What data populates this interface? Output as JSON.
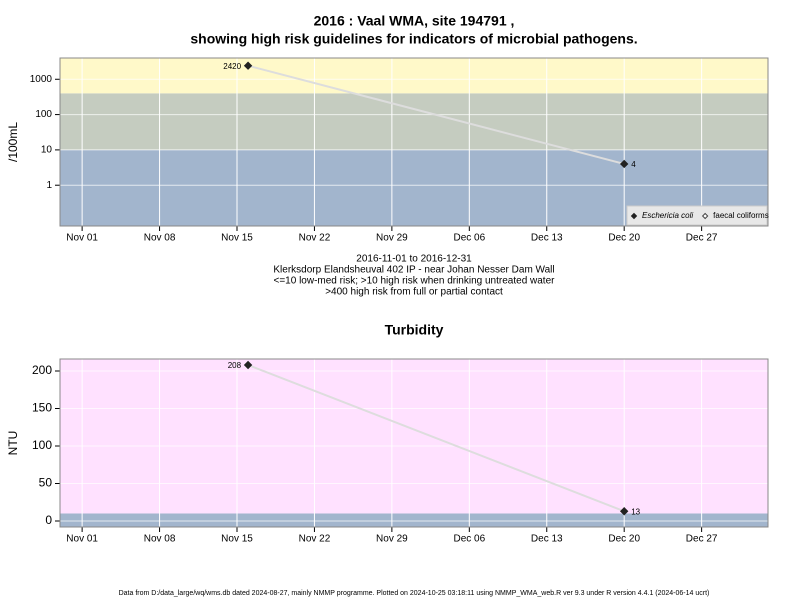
{
  "chart_data": [
    {
      "type": "line",
      "title": "2016 : Vaal WMA, site 194791 ,",
      "subtitle": "showing high risk guidelines for indicators of microbial pathogens.",
      "ylabel": "/100mL",
      "log_y": true,
      "grid": true,
      "legend": "lower right",
      "x": [
        "2016-11-16",
        "2016-12-20"
      ],
      "xlim": [
        "2016-10-30",
        "2017-01-02"
      ],
      "xticks": [
        {
          "value": "2016-11-01",
          "label": "Nov 01"
        },
        {
          "value": "2016-11-08",
          "label": "Nov 08"
        },
        {
          "value": "2016-11-15",
          "label": "Nov 15"
        },
        {
          "value": "2016-11-22",
          "label": "Nov 22"
        },
        {
          "value": "2016-11-29",
          "label": "Nov 29"
        },
        {
          "value": "2016-12-06",
          "label": "Dec 06"
        },
        {
          "value": "2016-12-13",
          "label": "Dec 13"
        },
        {
          "value": "2016-12-20",
          "label": "Dec 20"
        },
        {
          "value": "2016-12-27",
          "label": "Dec 27"
        }
      ],
      "ylim": [
        0.07,
        4000
      ],
      "yticks": [
        1,
        10,
        100,
        1000
      ],
      "band_breaks": [
        10,
        400
      ],
      "band_colors": [
        "#a2b5cd",
        "#c5ccc0",
        "#fff9c9"
      ],
      "line_color": "#dddddd",
      "series": [
        {
          "name": "Eschericia coli",
          "color": "#222222",
          "marker": "filled",
          "values": [
            2420,
            4
          ]
        },
        {
          "name": "faecal coliforms",
          "color": "#444444",
          "marker": "open",
          "values": [
            null,
            null
          ]
        }
      ],
      "annotations": [
        "2016-11-01 to 2016-12-31",
        "Klerksdorp Elandsheuval 402 IP - near Johan Nesser Dam Wall",
        "<=10 low-med risk; >10 high risk when drinking untreated water",
        ">400 high risk from full or partial contact"
      ]
    },
    {
      "type": "line",
      "title": "Turbidity",
      "ylabel": "NTU",
      "log_y": false,
      "grid": true,
      "x": [
        "2016-11-16",
        "2016-12-20"
      ],
      "xlim": [
        "2016-10-30",
        "2017-01-02"
      ],
      "xticks": [
        {
          "value": "2016-11-01",
          "label": "Nov 01"
        },
        {
          "value": "2016-11-08",
          "label": "Nov 08"
        },
        {
          "value": "2016-11-15",
          "label": "Nov 15"
        },
        {
          "value": "2016-11-22",
          "label": "Nov 22"
        },
        {
          "value": "2016-11-29",
          "label": "Nov 29"
        },
        {
          "value": "2016-12-06",
          "label": "Dec 06"
        },
        {
          "value": "2016-12-13",
          "label": "Dec 13"
        },
        {
          "value": "2016-12-20",
          "label": "Dec 20"
        },
        {
          "value": "2016-12-27",
          "label": "Dec 27"
        }
      ],
      "ylim": [
        -8,
        216
      ],
      "yticks": [
        0,
        50,
        100,
        150,
        200
      ],
      "band_breaks": [
        10
      ],
      "band_colors": [
        "#a2b5cd",
        "#ffe1ff"
      ],
      "line_color": "#dddddd",
      "series": [
        {
          "color": "#222222",
          "marker": "filled",
          "values": [
            208,
            13
          ]
        }
      ]
    }
  ],
  "footer": "Data from D:/data_large/wq/wms.db dated 2024-08-27, mainly NMMP programme. Plotted on 2024-10-25 03:18:11 using NMMP_WMA_web.R ver 9.3 under R version 4.4.1 (2024-06-14 ucrt)"
}
